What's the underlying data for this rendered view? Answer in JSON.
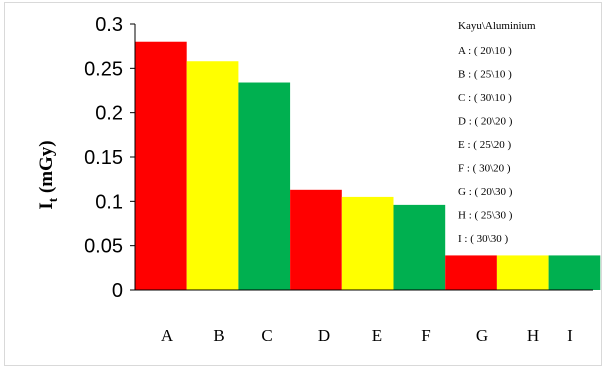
{
  "chart_data": {
    "type": "bar",
    "categories": [
      "A",
      "B",
      "C",
      "D",
      "E",
      "F",
      "G",
      "H",
      "I"
    ],
    "values": [
      0.28,
      0.258,
      0.234,
      0.113,
      0.105,
      0.096,
      0.039,
      0.039,
      0.039
    ],
    "bar_colors": [
      "#ff0000",
      "#ffff00",
      "#00b050",
      "#ff0000",
      "#ffff00",
      "#00b050",
      "#ff0000",
      "#ffff00",
      "#00b050"
    ],
    "ylabel_main": "I",
    "ylabel_sub": "t",
    "ylabel_unit": " (mGy)",
    "ylim": [
      0,
      0.3
    ],
    "yticks": [
      "0",
      "0.05",
      "0.1",
      "0.15",
      "0.2",
      "0.25",
      "0.3"
    ],
    "grid": false,
    "legend": {
      "placement": "top-right",
      "title": "Kayu\\Aluminium",
      "entries": [
        "A : ( 20\\10 )",
        "B : ( 25\\10 )",
        "C : ( 30\\10 )",
        "D : ( 20\\20 )",
        "E : ( 25\\20 )",
        "F : ( 30\\20 )",
        "G : ( 20\\30 )",
        "H : ( 25\\30 )",
        "I : ( 30\\30 )"
      ]
    }
  }
}
